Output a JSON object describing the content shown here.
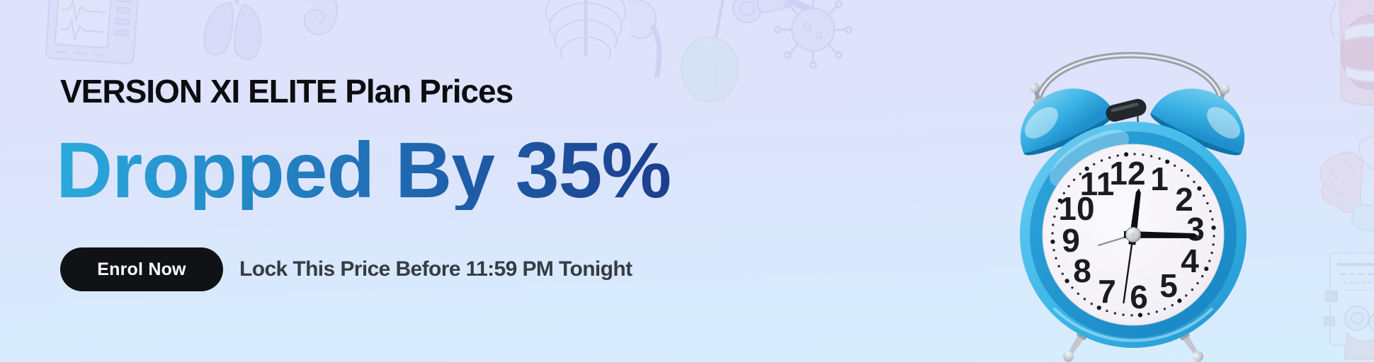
{
  "banner": {
    "headline": "VERSION XI ELITE Plan Prices",
    "subheadline": "Dropped By 35%",
    "cta_button_label": "Enrol Now",
    "urgency_text": "Lock This Price Before 11:59 PM Tonight"
  },
  "clock": {
    "numerals": [
      "12",
      "1",
      "2",
      "3",
      "4",
      "5",
      "6",
      "7",
      "8",
      "9",
      "10",
      "11"
    ],
    "time_shown": "12:15"
  },
  "colors": {
    "background_top": "#e0e2fb",
    "background_bottom": "#d5eefe",
    "headline_text": "#0c0d10",
    "subheadline_gradient_start": "#2baadd",
    "subheadline_gradient_end": "#1c3e8d",
    "button_background": "#111216",
    "button_text": "#ffffff",
    "urgency_text": "#363c44",
    "clock_blue": "#3cb7e8"
  },
  "background_illustrations": [
    "patient-monitor-illustration",
    "lungs-organ-illustration",
    "ear-cochlea-illustration",
    "ribcage-skeleton-illustration",
    "dental-mirror-illustration",
    "otoscope-illustration",
    "virus-illustration",
    "open-mouth-dental-illustration",
    "brain-anatomy-illustration",
    "eye-chart-device-illustration"
  ]
}
